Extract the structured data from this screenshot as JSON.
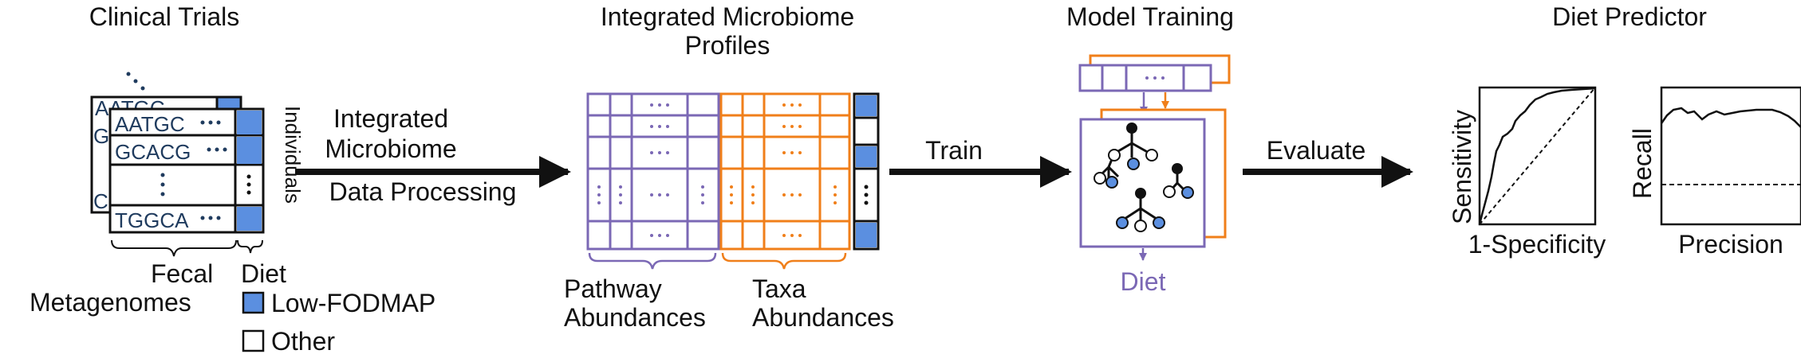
{
  "sections": {
    "clinical_trials": "Clinical Trials",
    "integrated_profiles_line1": "Integrated Microbiome",
    "integrated_profiles_line2": "Profiles",
    "model_training": "Model Training",
    "diet_predictor": "Diet Predictor"
  },
  "clinical": {
    "sequences": [
      "AATGC",
      "AATGC",
      "GCACG",
      "TGGCA"
    ],
    "partial_letters": [
      "G",
      "C"
    ],
    "individuals_label": "Individuals",
    "fecal_label": "Fecal",
    "metagenomes_label": "Metagenomes",
    "diet_label": "Diet"
  },
  "legend": {
    "low_fodmap": "Low-FODMAP",
    "other": "Other"
  },
  "arrows": {
    "processing_line1": "Integrated",
    "processing_line2": "Microbiome",
    "processing_line3": "Data Processing",
    "train": "Train",
    "evaluate": "Evaluate"
  },
  "profiles": {
    "pathway_line1": "Pathway",
    "pathway_line2": "Abundances",
    "taxa_line1": "Taxa",
    "taxa_line2": "Abundances"
  },
  "model": {
    "diet_output": "Diet"
  },
  "evaluation": {
    "roc_ylabel": "Sensitivity",
    "roc_xlabel": "1-Specificity",
    "pr_ylabel": "Recall",
    "pr_xlabel": "Precision"
  },
  "colors": {
    "purple": "#7B68B5",
    "orange": "#F07F1A",
    "blue": "#5B8FE0",
    "text": "#111111",
    "seq_text": "#1F3B5E"
  }
}
